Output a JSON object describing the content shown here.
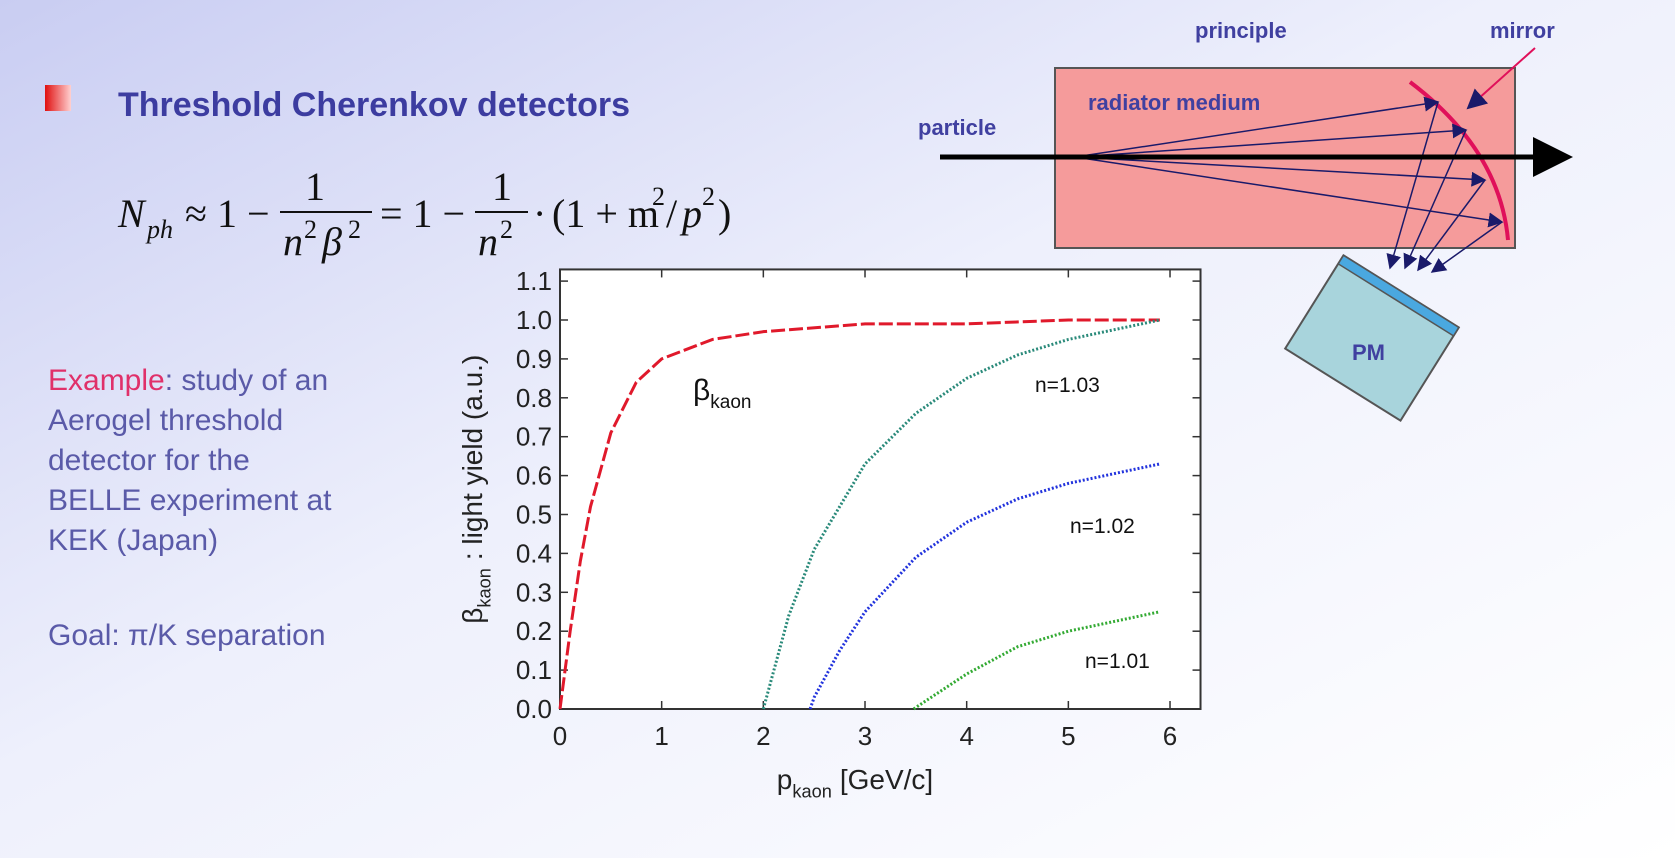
{
  "slide": {
    "title": "Threshold Cherenkov detectors",
    "formula": [
      "N",
      "ph",
      "≈ 1 −",
      "1",
      "n",
      "2",
      "β",
      "2",
      "= 1 −",
      "1",
      "n",
      "2",
      "·",
      "(1 + m",
      "2",
      "/",
      "p",
      "2",
      ")"
    ],
    "example_label": "Example",
    "example_text": [
      ": study of an",
      "Aerogel threshold",
      "detector for the",
      "BELLE experiment at",
      "KEK (Japan)"
    ],
    "goal": "Goal: π/K separation"
  },
  "diagram": {
    "title": "principle",
    "mirror": "mirror",
    "particle": "particle",
    "medium": "radiator medium",
    "pm": "PM"
  },
  "chart_data": {
    "type": "line",
    "x_label": {
      "text": "p",
      "subscript": "kaon",
      "suffix": "[GeV/c]"
    },
    "y_label": {
      "text": "β",
      "subscript": "kaon",
      "suffix": ":  light yield (a.u.)"
    },
    "xlim": [
      0,
      6.3
    ],
    "ylim": [
      0,
      1.13
    ],
    "xticks": [
      0,
      1,
      2,
      3,
      4,
      5,
      6
    ],
    "yticks": [
      {
        "value": 0,
        "label": "0.0"
      },
      0.1,
      0.2,
      0.3,
      0.4,
      0.5,
      0.6,
      0.7,
      0.8,
      0.9,
      {
        "value": 1,
        "label": "1.0"
      },
      1.1
    ],
    "series": [
      {
        "name": "β",
        "subscript": "kaon",
        "color": "#e0192b",
        "dash": "14,4",
        "x": [
          0,
          0.1,
          0.2,
          0.3,
          0.5,
          0.75,
          1,
          1.5,
          2,
          3,
          4,
          5,
          5.9
        ],
        "values": [
          0,
          0.2,
          0.38,
          0.52,
          0.71,
          0.84,
          0.9,
          0.95,
          0.97,
          0.99,
          0.99,
          1.0,
          1.0
        ]
      },
      {
        "name": "n=1.03",
        "color": "#2a8a7a",
        "dash": "2,2",
        "x": [
          2.0,
          2.25,
          2.5,
          3,
          3.5,
          4,
          4.5,
          5,
          5.9
        ],
        "values": [
          0,
          0.24,
          0.41,
          0.63,
          0.76,
          0.85,
          0.91,
          0.95,
          1.0
        ]
      },
      {
        "name": "n=1.02",
        "color": "#2233dd",
        "dash": "2,2",
        "x": [
          2.46,
          2.5,
          2.75,
          3,
          3.5,
          4,
          4.5,
          5,
          5.9
        ],
        "values": [
          0,
          0.03,
          0.15,
          0.25,
          0.39,
          0.48,
          0.54,
          0.58,
          0.63
        ]
      },
      {
        "name": "n=1.01",
        "color": "#33aa33",
        "dash": "2,2",
        "x": [
          3.48,
          3.5,
          4,
          4.5,
          5,
          5.9
        ],
        "values": [
          0,
          0.004,
          0.09,
          0.16,
          0.2,
          0.25
        ]
      }
    ]
  }
}
